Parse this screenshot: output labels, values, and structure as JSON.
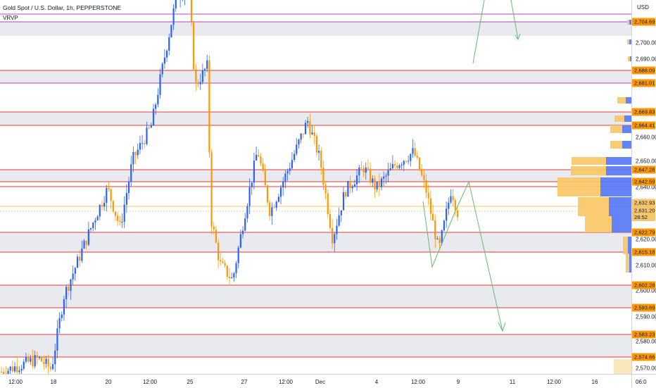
{
  "chart": {
    "title": "Gold Spot / U.S. Dollar, 1h, PEPPERSTONE",
    "indicator_label": "VRVP",
    "currency": "USD",
    "corner_time": "06:0",
    "countdown": "28:52"
  },
  "price_axis": {
    "labels": [
      "2,700.00",
      "2,690.00",
      "2,660.00",
      "2,650.00",
      "2,640.00",
      "2,620.00",
      "2,610.00",
      "2,600.00",
      "2,590.00",
      "2,580.00",
      "2,570.00"
    ]
  },
  "levels": [
    {
      "label": "2,704.69"
    },
    {
      "label": "2,686.09"
    },
    {
      "label": "2,681.01"
    },
    {
      "label": "2,669.83"
    },
    {
      "label": "2,664.41"
    },
    {
      "label": "2,647.28"
    },
    {
      "label": "2,642.59"
    },
    {
      "label": "2,632.93"
    },
    {
      "label": "2,631.20"
    },
    {
      "label": "2,622.79"
    },
    {
      "label": "2,615.18"
    },
    {
      "label": "2,602.28"
    },
    {
      "label": "2,593.69"
    },
    {
      "label": "2,583.23"
    },
    {
      "label": "2,574.66"
    }
  ],
  "time_axis": {
    "labels": [
      "12:00",
      "18",
      "20",
      "12:00",
      "25",
      "27",
      "12:00",
      "Dec",
      "4",
      "12:00",
      "9",
      "11",
      "12:00",
      "16"
    ]
  },
  "colors": {
    "up": "#2962ff",
    "down": "#ff9800",
    "zone_fill": "#e0e3eb",
    "red_line": "#e53935",
    "violet_line": "#ab47bc",
    "yellow_line": "#f7c66b",
    "forecast": "#66bb6a",
    "vp_up": "#5b7cf5",
    "vp_down": "#f9c86a"
  },
  "chart_data": {
    "type": "candlestick",
    "title": "Gold Spot / U.S. Dollar, 1h, PEPPERSTONE",
    "xlabel": "",
    "ylabel": "USD",
    "ylim": [
      2565,
      2718
    ],
    "waypoints": [
      {
        "t": 0,
        "p": 2571
      },
      {
        "t": 0.06,
        "p": 2576
      },
      {
        "t": 0.08,
        "p": 2572
      },
      {
        "t": 0.1,
        "p": 2600
      },
      {
        "t": 0.12,
        "p": 2612
      },
      {
        "t": 0.15,
        "p": 2630
      },
      {
        "t": 0.17,
        "p": 2641
      },
      {
        "t": 0.19,
        "p": 2626
      },
      {
        "t": 0.21,
        "p": 2652
      },
      {
        "t": 0.24,
        "p": 2665
      },
      {
        "t": 0.26,
        "p": 2690
      },
      {
        "t": 0.28,
        "p": 2714
      },
      {
        "t": 0.3,
        "p": 2718
      },
      {
        "t": 0.31,
        "p": 2680
      },
      {
        "t": 0.33,
        "p": 2688
      },
      {
        "t": 0.335,
        "p": 2630
      },
      {
        "t": 0.35,
        "p": 2612
      },
      {
        "t": 0.37,
        "p": 2606
      },
      {
        "t": 0.39,
        "p": 2632
      },
      {
        "t": 0.41,
        "p": 2656
      },
      {
        "t": 0.43,
        "p": 2632
      },
      {
        "t": 0.46,
        "p": 2649
      },
      {
        "t": 0.49,
        "p": 2667
      },
      {
        "t": 0.51,
        "p": 2652
      },
      {
        "t": 0.53,
        "p": 2622
      },
      {
        "t": 0.55,
        "p": 2640
      },
      {
        "t": 0.58,
        "p": 2649
      },
      {
        "t": 0.6,
        "p": 2641
      },
      {
        "t": 0.63,
        "p": 2650
      },
      {
        "t": 0.66,
        "p": 2655
      },
      {
        "t": 0.68,
        "p": 2640
      },
      {
        "t": 0.7,
        "p": 2617
      },
      {
        "t": 0.72,
        "p": 2641
      },
      {
        "t": 0.73,
        "p": 2632
      }
    ]
  }
}
